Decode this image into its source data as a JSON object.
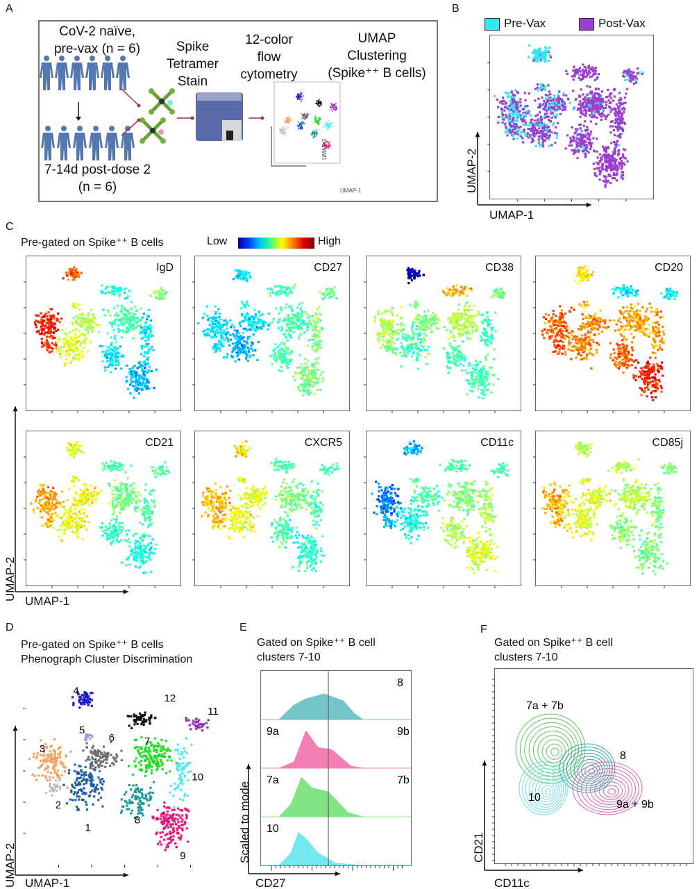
{
  "panels": {
    "a": "A",
    "b": "B",
    "c": "C",
    "d": "D",
    "e": "E",
    "f": "F"
  },
  "panel_a": {
    "group1": "CoV-2 naïve,\npre-vax (n = 6)",
    "group2": "7-14d post-dose 2\n(n = 6)",
    "step1": "Spike\nTetramer\nStain",
    "step2": "12-color\nflow\ncytometry",
    "step3": "UMAP\nClustering\n(Spike⁺⁺ B cells)",
    "mini_x": "UMAP-1",
    "mini_y": "UMAP-2"
  },
  "panel_b": {
    "legend": [
      {
        "label": "Pre-Vax",
        "color": "#33e6f0"
      },
      {
        "label": "Post-Vax",
        "color": "#9b3fd0"
      }
    ],
    "xlabel": "UMAP-1",
    "ylabel": "UMAP-2"
  },
  "panel_c": {
    "title": "Pre-gated on Spike⁺⁺ B cells",
    "scale_low": "Low",
    "scale_high": "High",
    "colormap": "jet",
    "markers": [
      "IgD",
      "CD27",
      "CD38",
      "CD20",
      "CD21",
      "CXCR5",
      "CD11c",
      "CD85j"
    ],
    "xlabel": "UMAP-1",
    "ylabel": "UMAP-2"
  },
  "panel_d": {
    "title1": "Pre-gated on Spike⁺⁺ B cells",
    "title2": "Phenograph Cluster Discrimination",
    "clusters": [
      {
        "id": "1",
        "color": "#1f5fa8"
      },
      {
        "id": "2",
        "color": "#bdbdbd"
      },
      {
        "id": "3",
        "color": "#f4a460"
      },
      {
        "id": "4",
        "color": "#1a1ad0"
      },
      {
        "id": "5",
        "color": "#9999ee"
      },
      {
        "id": "6",
        "color": "#6e6e6e"
      },
      {
        "id": "7",
        "color": "#22dd22"
      },
      {
        "id": "8",
        "color": "#1a9a9a"
      },
      {
        "id": "9",
        "color": "#e8157a"
      },
      {
        "id": "10",
        "color": "#55e6f0"
      },
      {
        "id": "11",
        "color": "#9a2ac8"
      },
      {
        "id": "12",
        "color": "#111111"
      }
    ],
    "xlabel": "UMAP-1",
    "ylabel": "UMAP-2"
  },
  "panel_e": {
    "title1": "Gated on Spike⁺⁺ B cell",
    "title2": "clusters 7-10",
    "rows": [
      {
        "left": "",
        "right": "8",
        "color": "#5bbcc0"
      },
      {
        "left": "9a",
        "right": "9b",
        "color": "#f06aa8"
      },
      {
        "left": "7a",
        "right": "7b",
        "color": "#6ee06e"
      },
      {
        "left": "10",
        "right": "",
        "color": "#5ee6ee"
      }
    ],
    "xlabel": "CD27",
    "ylabel": "Scaled to mode"
  },
  "panel_f": {
    "title1": "Gated on Spike⁺⁺ B cell",
    "title2": "clusters 7-10",
    "groups": [
      {
        "label": "7a + 7b",
        "color": "#5cc85c"
      },
      {
        "label": "8",
        "color": "#2aaaa0"
      },
      {
        "label": "10",
        "color": "#6fdde8"
      },
      {
        "label": "9a + 9b",
        "color": "#e060b0"
      }
    ],
    "xlabel": "CD11c",
    "ylabel": "CD21"
  }
}
